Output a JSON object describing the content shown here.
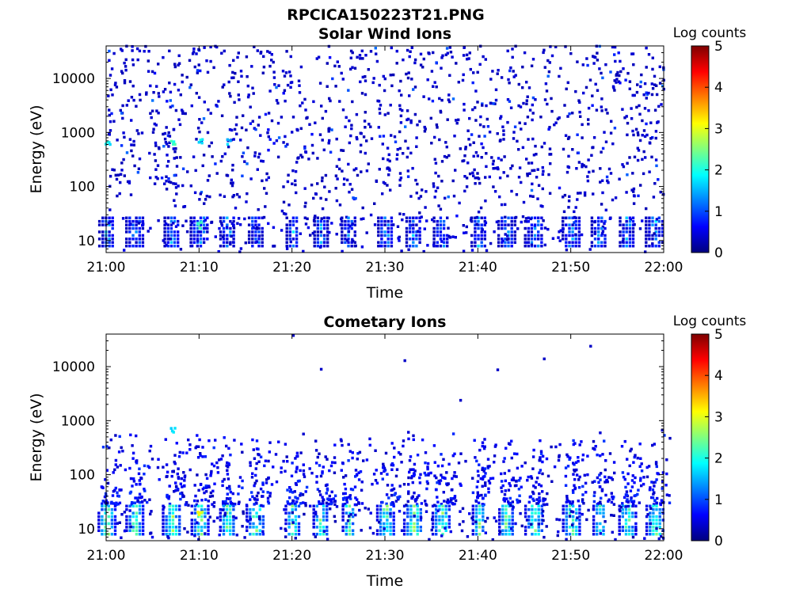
{
  "figure": {
    "title": "RPCICA150223T21.PNG"
  },
  "chart_data": [
    {
      "type": "heatmap",
      "title": "Solar Wind Ions",
      "xlabel": "Time",
      "ylabel": "Energy (eV)",
      "x_range": [
        "21:00",
        "22:00"
      ],
      "xticks": [
        "21:00",
        "21:10",
        "21:20",
        "21:30",
        "21:40",
        "21:50",
        "22:00"
      ],
      "y_scale": "log",
      "ylim": [
        6,
        40000
      ],
      "yticks": [
        "10",
        "100",
        "1000",
        "10000"
      ],
      "colorbar": {
        "label": "Log counts",
        "range": [
          0,
          5
        ],
        "ticks": [
          "0",
          "1",
          "2",
          "3",
          "4",
          "5"
        ],
        "colormap": "jet"
      },
      "features": {
        "low_energy_band_eV": [
          8,
          28
        ],
        "burst_times": [
          "21:00",
          "21:03",
          "21:07",
          "21:10",
          "21:13",
          "21:16",
          "21:20",
          "21:23",
          "21:26",
          "21:30",
          "21:33",
          "21:36",
          "21:40",
          "21:43",
          "21:46",
          "21:50",
          "21:53",
          "21:56",
          "21:59"
        ],
        "hot_spots": [
          {
            "time": "21:00",
            "energy_eV": 650,
            "log_counts": 2.0
          },
          {
            "time": "21:07",
            "energy_eV": 650,
            "log_counts": 2.3
          },
          {
            "time": "21:10",
            "energy_eV": 650,
            "log_counts": 2.0
          },
          {
            "time": "21:13",
            "energy_eV": 650,
            "log_counts": 1.8
          },
          {
            "time": "21:10",
            "energy_eV": 20,
            "log_counts": 2.5
          }
        ],
        "background_noise_log_counts": 0.3
      }
    },
    {
      "type": "heatmap",
      "title": "Cometary Ions",
      "xlabel": "Time",
      "ylabel": "Energy (eV)",
      "x_range": [
        "21:00",
        "22:00"
      ],
      "xticks": [
        "21:00",
        "21:10",
        "21:20",
        "21:30",
        "21:40",
        "21:50",
        "22:00"
      ],
      "y_scale": "log",
      "ylim": [
        6,
        40000
      ],
      "yticks": [
        "10",
        "100",
        "1000",
        "10000"
      ],
      "colorbar": {
        "label": "Log counts",
        "range": [
          0,
          5
        ],
        "ticks": [
          "0",
          "1",
          "2",
          "3",
          "4",
          "5"
        ],
        "colormap": "jet"
      },
      "features": {
        "low_energy_band_eV": [
          8,
          28
        ],
        "band_peak_log_counts": 2.8,
        "burst_times": [
          "21:00",
          "21:03",
          "21:07",
          "21:10",
          "21:13",
          "21:16",
          "21:20",
          "21:23",
          "21:26",
          "21:30",
          "21:33",
          "21:36",
          "21:40",
          "21:43",
          "21:46",
          "21:50",
          "21:53",
          "21:56",
          "21:59"
        ],
        "hot_spots": [
          {
            "time": "21:10",
            "energy_eV": 20,
            "log_counts": 3.2
          },
          {
            "time": "21:07",
            "energy_eV": 650,
            "log_counts": 1.8
          }
        ],
        "sparse_high_energy_points": [
          {
            "time": "21:20",
            "energy_eV": 38000
          },
          {
            "time": "21:23",
            "energy_eV": 9000
          },
          {
            "time": "21:32",
            "energy_eV": 13000
          },
          {
            "time": "21:47",
            "energy_eV": 14000
          },
          {
            "time": "21:52",
            "energy_eV": 24000
          },
          {
            "time": "21:42",
            "energy_eV": 8800
          },
          {
            "time": "21:38",
            "energy_eV": 2400
          }
        ]
      }
    }
  ]
}
